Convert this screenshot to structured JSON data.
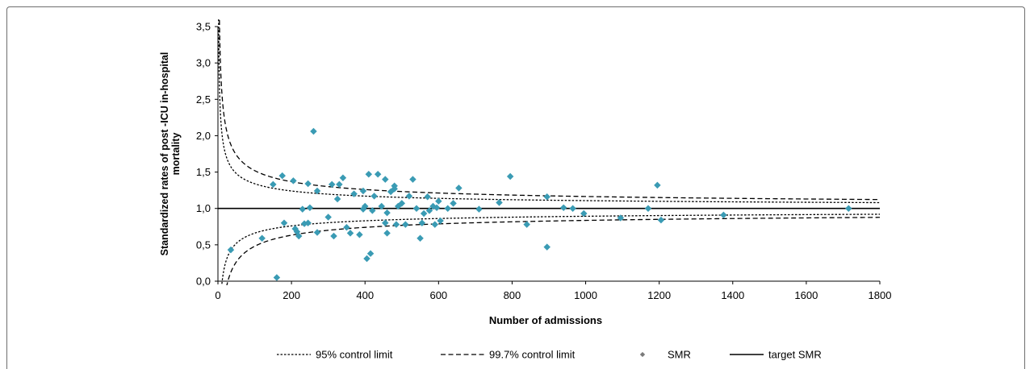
{
  "chart_data": {
    "type": "scatter",
    "title": "",
    "xlabel": "Number of admissions",
    "ylabel_lines": [
      "Standardized rates of post -ICU in-hospital",
      "mortality"
    ],
    "xlim": [
      0,
      1800
    ],
    "ylim": [
      0,
      3.5
    ],
    "x_ticks": [
      0,
      200,
      400,
      600,
      800,
      1000,
      1200,
      1400,
      1600,
      1800
    ],
    "x_tick_labels": [
      "0",
      "200",
      "400",
      "600",
      "800",
      "1000",
      "1200",
      "1400",
      "1600",
      "1800"
    ],
    "y_ticks": [
      0,
      0.5,
      1.0,
      1.5,
      2.0,
      2.5,
      3.0,
      3.5
    ],
    "y_tick_labels": [
      "0,0",
      "0,5",
      "1,0",
      "1,5",
      "2,0",
      "2,5",
      "3,0",
      "3,5"
    ],
    "grid": false,
    "legend_position": "bottom",
    "legend": {
      "cl95": "95%  control limit",
      "cl997": "99.7%  control limit",
      "smr": "SMR",
      "target": "target SMR"
    },
    "colors": {
      "smr": "#3a9bb4",
      "lines": "#000000",
      "frame": "#6e6e6e"
    },
    "target_smr": 1.0,
    "control_limits": {
      "cl95_z": 1.96,
      "cl997_z": 3.0,
      "mortality_rate": 0.25
    },
    "series": [
      {
        "name": "SMR",
        "points": [
          [
            35,
            0.43
          ],
          [
            120,
            0.59
          ],
          [
            150,
            1.33
          ],
          [
            160,
            0.05
          ],
          [
            175,
            1.45
          ],
          [
            180,
            0.8
          ],
          [
            205,
            1.38
          ],
          [
            210,
            0.72
          ],
          [
            215,
            0.68
          ],
          [
            220,
            0.62
          ],
          [
            230,
            0.99
          ],
          [
            235,
            0.79
          ],
          [
            245,
            1.34
          ],
          [
            245,
            0.8
          ],
          [
            250,
            1.01
          ],
          [
            260,
            2.06
          ],
          [
            270,
            1.24
          ],
          [
            270,
            0.67
          ],
          [
            300,
            0.88
          ],
          [
            310,
            1.33
          ],
          [
            315,
            0.62
          ],
          [
            325,
            1.13
          ],
          [
            330,
            1.33
          ],
          [
            340,
            1.42
          ],
          [
            350,
            0.74
          ],
          [
            360,
            0.66
          ],
          [
            370,
            1.2
          ],
          [
            385,
            0.64
          ],
          [
            395,
            1.24
          ],
          [
            395,
            0.99
          ],
          [
            400,
            1.03
          ],
          [
            405,
            0.31
          ],
          [
            410,
            1.47
          ],
          [
            415,
            0.38
          ],
          [
            420,
            0.97
          ],
          [
            425,
            1.17
          ],
          [
            435,
            1.47
          ],
          [
            445,
            1.03
          ],
          [
            455,
            1.4
          ],
          [
            455,
            0.8
          ],
          [
            460,
            0.66
          ],
          [
            460,
            0.94
          ],
          [
            470,
            1.23
          ],
          [
            480,
            1.31
          ],
          [
            480,
            1.27
          ],
          [
            485,
            0.78
          ],
          [
            490,
            1.03
          ],
          [
            500,
            1.07
          ],
          [
            510,
            0.78
          ],
          [
            520,
            1.17
          ],
          [
            530,
            1.4
          ],
          [
            540,
            1.0
          ],
          [
            550,
            0.59
          ],
          [
            555,
            0.8
          ],
          [
            560,
            0.93
          ],
          [
            570,
            1.16
          ],
          [
            575,
            0.97
          ],
          [
            585,
            1.03
          ],
          [
            590,
            0.78
          ],
          [
            595,
            1.01
          ],
          [
            600,
            1.1
          ],
          [
            605,
            0.83
          ],
          [
            625,
            1.0
          ],
          [
            640,
            1.07
          ],
          [
            655,
            1.28
          ],
          [
            710,
            0.99
          ],
          [
            765,
            1.08
          ],
          [
            795,
            1.44
          ],
          [
            840,
            0.78
          ],
          [
            895,
            1.16
          ],
          [
            895,
            0.47
          ],
          [
            940,
            1.01
          ],
          [
            965,
            1.0
          ],
          [
            995,
            0.93
          ],
          [
            1095,
            0.87
          ],
          [
            1170,
            1.0
          ],
          [
            1195,
            1.32
          ],
          [
            1205,
            0.84
          ],
          [
            1375,
            0.91
          ],
          [
            1715,
            1.0
          ]
        ]
      }
    ]
  }
}
